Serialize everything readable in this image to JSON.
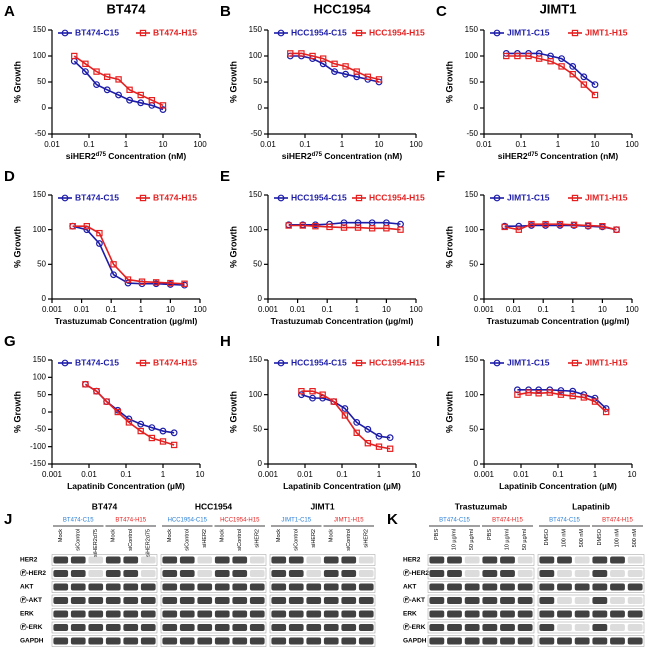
{
  "chart_data": [
    {
      "type": "line",
      "panel": "A",
      "title": "BT474",
      "x_label": [
        "siHER2",
        "d75",
        " Concentration (nM)"
      ],
      "y_label": "% Growth",
      "xscale": "log",
      "xlim": [
        0.01,
        100
      ],
      "xticks": [
        0.01,
        0.1,
        1,
        10,
        100
      ],
      "ylim": [
        -50,
        150
      ],
      "yticks": [
        -50,
        0,
        50,
        100,
        150
      ],
      "x": [
        0.04,
        0.08,
        0.16,
        0.31,
        0.63,
        1.25,
        2.5,
        5,
        10
      ],
      "series": [
        {
          "name": "BT474-C15",
          "color": "#1c1ca8",
          "marker": "circle",
          "values": [
            90,
            70,
            45,
            35,
            25,
            15,
            10,
            5,
            -3
          ]
        },
        {
          "name": "BT474-H15",
          "color": "#e52020",
          "marker": "square",
          "values": [
            100,
            85,
            70,
            60,
            55,
            35,
            25,
            15,
            5
          ]
        }
      ]
    },
    {
      "type": "line",
      "panel": "B",
      "title": "HCC1954",
      "x_label": [
        "siHER2",
        "d75",
        " Concentration (nM)"
      ],
      "y_label": "% Growth",
      "xscale": "log",
      "xlim": [
        0.01,
        100
      ],
      "xticks": [
        0.01,
        0.1,
        1,
        10,
        100
      ],
      "ylim": [
        -50,
        150
      ],
      "yticks": [
        -50,
        0,
        50,
        100,
        150
      ],
      "x": [
        0.04,
        0.08,
        0.16,
        0.31,
        0.63,
        1.25,
        2.5,
        5,
        10
      ],
      "series": [
        {
          "name": "HCC1954-C15",
          "color": "#1c1ca8",
          "marker": "circle",
          "values": [
            100,
            100,
            95,
            85,
            70,
            65,
            60,
            55,
            50
          ]
        },
        {
          "name": "HCC1954-H15",
          "color": "#e52020",
          "marker": "square",
          "values": [
            105,
            105,
            100,
            95,
            85,
            80,
            70,
            60,
            55
          ]
        }
      ]
    },
    {
      "type": "line",
      "panel": "C",
      "title": "JIMT1",
      "x_label": [
        "siHER2",
        "d75",
        " Concentration (nM)"
      ],
      "y_label": "% Growth",
      "xscale": "log",
      "xlim": [
        0.01,
        100
      ],
      "xticks": [
        0.01,
        0.1,
        1,
        10,
        100
      ],
      "ylim": [
        -50,
        150
      ],
      "yticks": [
        -50,
        0,
        50,
        100,
        150
      ],
      "x": [
        0.04,
        0.08,
        0.16,
        0.31,
        0.63,
        1.25,
        2.5,
        5,
        10
      ],
      "series": [
        {
          "name": "JIMT1-C15",
          "color": "#1c1ca8",
          "marker": "circle",
          "values": [
            105,
            105,
            105,
            105,
            100,
            95,
            80,
            60,
            45
          ]
        },
        {
          "name": "JIMT1-H15",
          "color": "#e52020",
          "marker": "square",
          "values": [
            100,
            100,
            100,
            95,
            90,
            80,
            65,
            45,
            25
          ]
        }
      ]
    },
    {
      "type": "line",
      "panel": "D",
      "x_label": [
        "Trastuzumab Concentration (µg/ml)"
      ],
      "y_label": "% Growth",
      "xscale": "log",
      "xlim": [
        0.001,
        100
      ],
      "xticks": [
        0.001,
        0.01,
        0.1,
        1,
        10,
        100
      ],
      "ylim": [
        0,
        150
      ],
      "yticks": [
        0,
        50,
        100,
        150
      ],
      "x": [
        0.005,
        0.015,
        0.04,
        0.12,
        0.37,
        1.1,
        3.3,
        10,
        30
      ],
      "series": [
        {
          "name": "BT474-C15",
          "color": "#1c1ca8",
          "marker": "circle",
          "values": [
            105,
            100,
            80,
            35,
            23,
            22,
            22,
            21,
            20
          ]
        },
        {
          "name": "BT474-H15",
          "color": "#e52020",
          "marker": "square",
          "values": [
            105,
            105,
            95,
            50,
            28,
            25,
            24,
            23,
            22
          ]
        }
      ]
    },
    {
      "type": "line",
      "panel": "E",
      "x_label": [
        "Trastuzumab Concentration (µg/ml)"
      ],
      "y_label": "% Growth",
      "xscale": "log",
      "xlim": [
        0.001,
        100
      ],
      "xticks": [
        0.001,
        0.01,
        0.1,
        1,
        10,
        100
      ],
      "ylim": [
        0,
        150
      ],
      "yticks": [
        0,
        50,
        100,
        150
      ],
      "x": [
        0.005,
        0.015,
        0.04,
        0.12,
        0.37,
        1.1,
        3.3,
        10,
        30
      ],
      "series": [
        {
          "name": "HCC1954-C15",
          "color": "#1c1ca8",
          "marker": "circle",
          "values": [
            107,
            107,
            107,
            108,
            110,
            110,
            110,
            110,
            108
          ]
        },
        {
          "name": "HCC1954-H15",
          "color": "#e52020",
          "marker": "square",
          "values": [
            106,
            106,
            105,
            104,
            103,
            103,
            102,
            102,
            100
          ]
        }
      ]
    },
    {
      "type": "line",
      "panel": "F",
      "x_label": [
        "Trastuzumab Concentration (µg/ml)"
      ],
      "y_label": "% Growth",
      "xscale": "log",
      "xlim": [
        0.001,
        100
      ],
      "xticks": [
        0.001,
        0.01,
        0.1,
        1,
        10,
        100
      ],
      "ylim": [
        0,
        150
      ],
      "yticks": [
        0,
        50,
        100,
        150
      ],
      "x": [
        0.005,
        0.015,
        0.04,
        0.12,
        0.37,
        1.1,
        3.3,
        10,
        30
      ],
      "series": [
        {
          "name": "JIMT1-C15",
          "color": "#1c1ca8",
          "marker": "circle",
          "values": [
            105,
            105,
            106,
            106,
            106,
            106,
            105,
            104,
            100
          ]
        },
        {
          "name": "JIMT1-H15",
          "color": "#e52020",
          "marker": "square",
          "values": [
            104,
            100,
            108,
            108,
            108,
            107,
            106,
            105,
            100
          ]
        }
      ]
    },
    {
      "type": "line",
      "panel": "G",
      "x_label": [
        "Lapatinib Concentration (µM)"
      ],
      "y_label": "% Growth",
      "xscale": "log",
      "xlim": [
        0.001,
        10
      ],
      "xticks": [
        0.001,
        0.01,
        0.1,
        1,
        10
      ],
      "ylim": [
        -150,
        150
      ],
      "yticks": [
        -150,
        -100,
        -50,
        0,
        50,
        100,
        150
      ],
      "x": [
        0.008,
        0.016,
        0.03,
        0.06,
        0.12,
        0.25,
        0.5,
        1,
        2
      ],
      "series": [
        {
          "name": "BT474-C15",
          "color": "#1c1ca8",
          "marker": "circle",
          "values": [
            80,
            60,
            30,
            5,
            -20,
            -35,
            -45,
            -55,
            -60
          ]
        },
        {
          "name": "BT474-H15",
          "color": "#e52020",
          "marker": "square",
          "values": [
            80,
            60,
            30,
            0,
            -30,
            -55,
            -75,
            -85,
            -95
          ]
        }
      ]
    },
    {
      "type": "line",
      "panel": "H",
      "x_label": [
        "Lapatinib Concentration (µM)"
      ],
      "y_label": "% Growth",
      "xscale": "log",
      "xlim": [
        0.001,
        10
      ],
      "xticks": [
        0.001,
        0.01,
        0.1,
        1,
        10
      ],
      "ylim": [
        0,
        150
      ],
      "yticks": [
        0,
        50,
        100,
        150
      ],
      "x": [
        0.008,
        0.016,
        0.03,
        0.06,
        0.12,
        0.25,
        0.5,
        1,
        2
      ],
      "series": [
        {
          "name": "HCC1954-C15",
          "color": "#1c1ca8",
          "marker": "circle",
          "values": [
            100,
            95,
            95,
            90,
            80,
            60,
            50,
            40,
            38
          ]
        },
        {
          "name": "HCC1954-H15",
          "color": "#e52020",
          "marker": "square",
          "values": [
            105,
            105,
            100,
            90,
            70,
            45,
            30,
            25,
            22
          ]
        }
      ]
    },
    {
      "type": "line",
      "panel": "I",
      "x_label": [
        "Lapatinib Concentration (µM)"
      ],
      "y_label": "% Growth",
      "xscale": "log",
      "xlim": [
        0.001,
        10
      ],
      "xticks": [
        0.001,
        0.01,
        0.1,
        1,
        10
      ],
      "ylim": [
        0,
        150
      ],
      "yticks": [
        0,
        50,
        100,
        150
      ],
      "x": [
        0.008,
        0.016,
        0.03,
        0.06,
        0.12,
        0.25,
        0.5,
        1,
        2
      ],
      "series": [
        {
          "name": "JIMT1-C15",
          "color": "#1c1ca8",
          "marker": "circle",
          "values": [
            107,
            107,
            107,
            107,
            106,
            105,
            100,
            95,
            80
          ]
        },
        {
          "name": "JIMT1-H15",
          "color": "#e52020",
          "marker": "square",
          "values": [
            100,
            103,
            102,
            103,
            100,
            98,
            96,
            90,
            75
          ]
        }
      ]
    }
  ],
  "blots": [
    {
      "label": "J",
      "rows": [
        "HER2",
        "Ⓟ-HER2",
        "AKT",
        "Ⓟ-AKT",
        "ERK",
        "Ⓟ-ERK",
        "GAPDH"
      ],
      "groups": [
        {
          "title": "BT474",
          "lines": [
            {
              "name": "BT474-C15",
              "lanes": [
                "Mock",
                "siControl",
                "siHER2d75"
              ]
            },
            {
              "name": "BT474-H15",
              "lanes": [
                "Mock",
                "siControl",
                "siHER2d75"
              ]
            }
          ]
        },
        {
          "title": "HCC1954",
          "lines": [
            {
              "name": "HCC1954-C15",
              "lanes": [
                "Mock",
                "siControl",
                "siHER2"
              ]
            },
            {
              "name": "HCC1954-H15",
              "lanes": [
                "Mock",
                "siControl",
                "siHER2"
              ]
            }
          ]
        },
        {
          "title": "JIMT1",
          "lines": [
            {
              "name": "JIMT1-C15",
              "lanes": [
                "Mock",
                "siControl",
                "siHER2"
              ]
            },
            {
              "name": "JIMT1-H15",
              "lanes": [
                "Mock",
                "siControl",
                "siHER2"
              ]
            }
          ]
        }
      ]
    },
    {
      "label": "K",
      "rows": [
        "HER2",
        "Ⓟ-HER2",
        "AKT",
        "Ⓟ-AKT",
        "ERK",
        "Ⓟ-ERK",
        "GAPDH"
      ],
      "groups": [
        {
          "title": "Trastuzumab",
          "lines": [
            {
              "name": "BT474-C15",
              "lanes": [
                "PBS",
                "10 µg/ml",
                "50 µg/ml"
              ]
            },
            {
              "name": "BT474-H15",
              "lanes": [
                "PBS",
                "10 µg/ml",
                "50 µg/ml"
              ]
            }
          ]
        },
        {
          "title": "Lapatinib",
          "lines": [
            {
              "name": "BT474-C15",
              "lanes": [
                "DMSO",
                "100 nM",
                "500 nM"
              ]
            },
            {
              "name": "BT474-H15",
              "lanes": [
                "DMSO",
                "100 nM",
                "500 nM"
              ]
            }
          ]
        }
      ]
    }
  ]
}
